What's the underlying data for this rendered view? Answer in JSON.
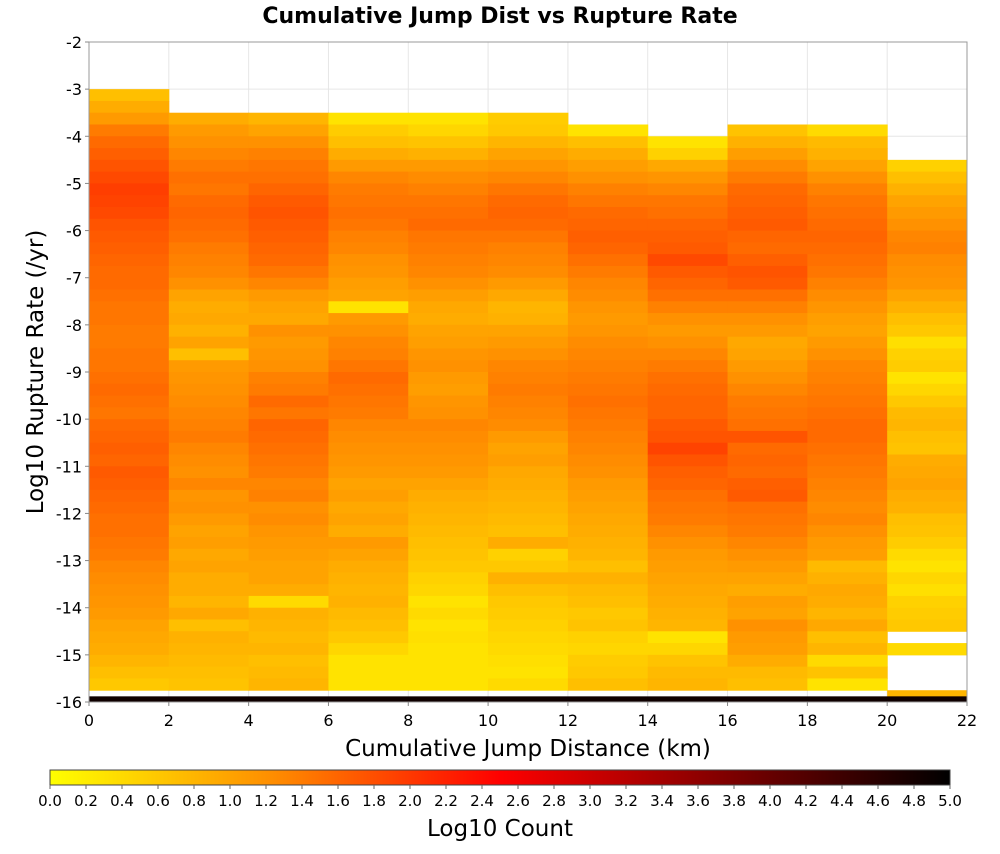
{
  "chart_data": {
    "type": "heatmap",
    "title": "Cumulative Jump Dist vs Rupture Rate",
    "xlabel": "Cumulative Jump Distance (km)",
    "ylabel": "Log10 Rupture Rate (/yr)",
    "xlim": [
      0,
      22
    ],
    "ylim": [
      -16,
      -2
    ],
    "x_ticks": [
      "0",
      "2",
      "4",
      "6",
      "8",
      "10",
      "12",
      "14",
      "16",
      "18",
      "20",
      "22"
    ],
    "y_ticks": [
      "-2",
      "-3",
      "-4",
      "-5",
      "-6",
      "-7",
      "-8",
      "-9",
      "-10",
      "-11",
      "-12",
      "-13",
      "-14",
      "-15",
      "-16"
    ],
    "x_bin_width": 2,
    "y_bin_height": 0.25,
    "grid": true,
    "colorbar": {
      "label": "Log10 Count",
      "range": [
        0,
        5
      ],
      "ticks": [
        "0.0",
        "0.2",
        "0.4",
        "0.6",
        "0.8",
        "1.0",
        "1.2",
        "1.4",
        "1.6",
        "1.8",
        "2.0",
        "2.2",
        "2.4",
        "2.6",
        "2.8",
        "3.0",
        "3.2",
        "3.4",
        "3.6",
        "3.8",
        "4.0",
        "4.2",
        "4.4",
        "4.6",
        "4.8",
        "5.0"
      ],
      "colors": [
        "#ffff00",
        "#ff8c00",
        "#ff0000",
        "#800000",
        "#000000"
      ]
    },
    "columns": [
      {
        "x": 1,
        "y_top": -3.0,
        "y_bottom": -15.75,
        "values": [
          0.7,
          0.9,
          1.1,
          1.4,
          1.55,
          1.65,
          1.75,
          1.85,
          1.95,
          1.9,
          1.85,
          1.75,
          1.7,
          1.65,
          1.6,
          1.55,
          1.55,
          1.5,
          1.45,
          1.45,
          1.4,
          1.4,
          1.45,
          1.45,
          1.5,
          1.55,
          1.5,
          1.45,
          1.55,
          1.6,
          1.65,
          1.6,
          1.7,
          1.65,
          1.6,
          1.55,
          1.5,
          1.5,
          1.45,
          1.4,
          1.3,
          1.25,
          1.2,
          1.15,
          1.1,
          1.0,
          0.95,
          0.9,
          0.8,
          0.7,
          0.6
        ]
      },
      {
        "x": 3,
        "y_top": -3.5,
        "y_bottom": -15.75,
        "values": [
          0.9,
          1.1,
          1.2,
          1.3,
          1.4,
          1.5,
          1.45,
          1.55,
          1.6,
          1.55,
          1.5,
          1.4,
          1.35,
          1.3,
          1.2,
          1.0,
          0.9,
          0.95,
          0.85,
          1.0,
          0.7,
          1.1,
          1.15,
          1.2,
          1.25,
          1.3,
          1.35,
          1.4,
          1.3,
          1.25,
          1.2,
          1.3,
          1.15,
          1.2,
          1.1,
          1.0,
          1.05,
          0.95,
          1.0,
          0.9,
          0.9,
          0.8,
          0.95,
          0.7,
          0.85,
          0.8,
          0.75,
          0.7,
          0.65
        ]
      },
      {
        "x": 5,
        "y_top": -3.5,
        "y_bottom": -15.75,
        "values": [
          0.8,
          1.0,
          1.2,
          1.35,
          1.45,
          1.5,
          1.6,
          1.7,
          1.75,
          1.7,
          1.65,
          1.6,
          1.55,
          1.45,
          1.3,
          1.1,
          1.0,
          0.95,
          1.2,
          1.1,
          1.15,
          1.2,
          1.35,
          1.4,
          1.55,
          1.45,
          1.6,
          1.55,
          1.5,
          1.45,
          1.4,
          1.3,
          1.35,
          1.2,
          1.25,
          1.15,
          1.1,
          1.05,
          1.0,
          1.0,
          0.9,
          0.4,
          0.85,
          0.8,
          0.75,
          0.8,
          0.7,
          0.75,
          0.8
        ]
      },
      {
        "x": 7,
        "y_top": -3.5,
        "y_bottom": -15.75,
        "values": [
          0.3,
          0.55,
          0.7,
          0.9,
          1.1,
          1.3,
          1.4,
          1.45,
          1.5,
          1.45,
          1.35,
          1.3,
          1.2,
          1.15,
          1.05,
          1.0,
          0.3,
          1.1,
          1.2,
          1.3,
          1.35,
          1.45,
          1.55,
          1.5,
          1.45,
          1.4,
          1.3,
          1.25,
          1.2,
          1.15,
          1.1,
          1.0,
          1.05,
          0.95,
          1.0,
          0.9,
          1.1,
          1.0,
          0.9,
          0.85,
          0.8,
          0.85,
          0.75,
          0.7,
          0.6,
          0.45,
          0.3,
          0.3,
          0.3
        ]
      },
      {
        "x": 9,
        "y_top": -3.5,
        "y_bottom": -15.75,
        "values": [
          0.3,
          0.45,
          0.65,
          0.85,
          1.1,
          1.25,
          1.35,
          1.45,
          1.5,
          1.55,
          1.45,
          1.4,
          1.35,
          1.3,
          1.2,
          1.05,
          0.95,
          0.9,
          1.0,
          1.05,
          1.15,
          1.2,
          1.1,
          1.05,
          1.15,
          1.2,
          1.3,
          1.25,
          1.2,
          1.15,
          1.1,
          1.0,
          0.9,
          0.85,
          0.8,
          0.75,
          0.7,
          0.65,
          0.6,
          0.5,
          0.45,
          0.3,
          0.4,
          0.3,
          0.35,
          0.3,
          0.3,
          0.3,
          0.3
        ]
      },
      {
        "x": 11,
        "y_top": -3.5,
        "y_bottom": -15.75,
        "values": [
          0.55,
          0.6,
          0.8,
          1.0,
          1.15,
          1.3,
          1.45,
          1.55,
          1.6,
          1.55,
          1.45,
          1.35,
          1.3,
          1.25,
          1.1,
          0.95,
          0.8,
          0.85,
          1.0,
          1.1,
          1.2,
          1.3,
          1.35,
          1.4,
          1.35,
          1.3,
          1.25,
          1.1,
          1.0,
          1.05,
          0.95,
          0.9,
          0.85,
          0.8,
          0.75,
          0.7,
          0.9,
          0.5,
          0.6,
          0.85,
          0.7,
          0.6,
          0.55,
          0.5,
          0.45,
          0.4,
          0.35,
          0.3,
          0.4
        ]
      },
      {
        "x": 13,
        "y_top": -3.75,
        "y_bottom": -15.75,
        "values": [
          0.3,
          0.7,
          0.9,
          1.05,
          1.2,
          1.35,
          1.45,
          1.55,
          1.6,
          1.65,
          1.6,
          1.5,
          1.4,
          1.3,
          1.25,
          1.15,
          1.1,
          1.15,
          1.25,
          1.3,
          1.35,
          1.4,
          1.45,
          1.5,
          1.45,
          1.4,
          1.35,
          1.3,
          1.25,
          1.2,
          1.1,
          1.05,
          1.0,
          0.95,
          0.9,
          0.85,
          0.8,
          0.7,
          0.85,
          0.75,
          0.7,
          0.6,
          0.65,
          0.5,
          0.45,
          0.55,
          0.6,
          0.7
        ]
      },
      {
        "x": 15,
        "y_top": -4.0,
        "y_bottom": -15.75,
        "values": [
          0.3,
          0.5,
          0.95,
          1.15,
          1.3,
          1.45,
          1.5,
          1.6,
          1.65,
          1.7,
          1.85,
          1.7,
          1.6,
          1.5,
          1.35,
          1.2,
          1.1,
          1.2,
          1.3,
          1.4,
          1.5,
          1.55,
          1.6,
          1.6,
          1.7,
          1.75,
          1.9,
          1.75,
          1.65,
          1.6,
          1.5,
          1.45,
          1.4,
          1.3,
          1.2,
          1.1,
          1.05,
          1.0,
          0.95,
          0.9,
          0.85,
          0.8,
          0.3,
          0.45,
          0.65,
          0.75,
          0.8
        ]
      },
      {
        "x": 17,
        "y_top": -3.75,
        "y_bottom": -15.75,
        "values": [
          0.65,
          0.85,
          1.05,
          1.25,
          1.4,
          1.55,
          1.6,
          1.65,
          1.7,
          1.6,
          1.55,
          1.65,
          1.75,
          1.7,
          1.5,
          1.35,
          1.2,
          1.1,
          0.95,
          1.0,
          1.1,
          1.2,
          1.3,
          1.4,
          1.45,
          1.5,
          1.75,
          1.55,
          1.6,
          1.55,
          1.65,
          1.7,
          1.5,
          1.45,
          1.4,
          1.3,
          1.2,
          1.1,
          1.0,
          0.9,
          1.05,
          1.0,
          1.2,
          1.1,
          1.05,
          0.9,
          0.75,
          0.7
        ]
      },
      {
        "x": 19,
        "y_top": -3.75,
        "y_bottom": -15.75,
        "values": [
          0.4,
          0.75,
          0.85,
          1.0,
          1.2,
          1.35,
          1.45,
          1.5,
          1.55,
          1.6,
          1.55,
          1.5,
          1.45,
          1.35,
          1.25,
          1.15,
          1.05,
          1.0,
          1.1,
          1.2,
          1.3,
          1.35,
          1.4,
          1.45,
          1.5,
          1.55,
          1.55,
          1.5,
          1.45,
          1.4,
          1.35,
          1.3,
          1.25,
          1.3,
          1.2,
          1.1,
          1.05,
          0.75,
          0.85,
          0.95,
          0.9,
          0.8,
          0.95,
          0.7,
          0.8,
          0.4,
          0.65,
          0.3
        ]
      },
      {
        "x": 21,
        "segments": [
          {
            "y_top": -4.5,
            "y_bottom": -14.5,
            "values": [
              0.5,
              0.7,
              0.85,
              1.0,
              1.1,
              1.2,
              1.3,
              1.35,
              1.25,
              1.2,
              1.15,
              1.0,
              0.85,
              0.7,
              0.6,
              0.35,
              0.5,
              0.55,
              0.3,
              0.45,
              0.6,
              0.75,
              0.8,
              0.7,
              0.65,
              0.9,
              0.95,
              1.0,
              0.9,
              0.85,
              0.7,
              0.65,
              0.55,
              0.4,
              0.3,
              0.45,
              0.35,
              0.5,
              0.55,
              0.6
            ]
          },
          {
            "y_top": -14.75,
            "y_bottom": -15.0,
            "values": [
              0.4
            ]
          },
          {
            "y_top": -15.75,
            "y_bottom": -16.0,
            "values": [
              0.8
            ]
          }
        ]
      }
    ],
    "bottom_row": {
      "y_top": -16.0,
      "y_bottom": -15.88,
      "value": 4.85
    }
  }
}
